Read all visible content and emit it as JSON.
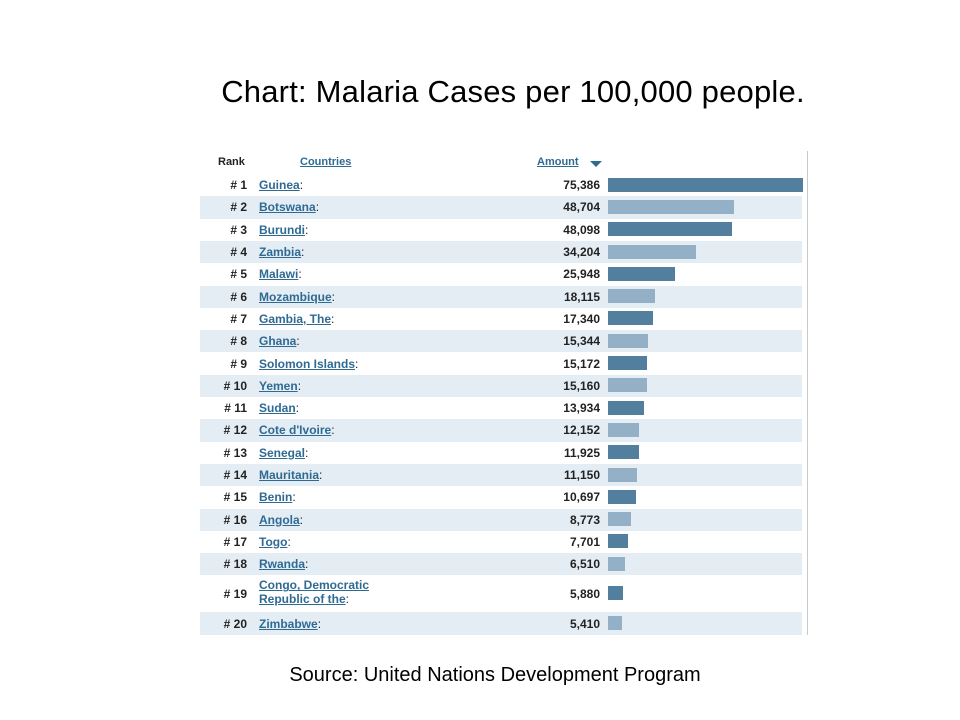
{
  "slide": {
    "title": "Chart: Malaria Cases per 100,000 people.",
    "source": "Source: United Nations Development Program"
  },
  "table": {
    "headers": {
      "rank": "Rank",
      "countries": "Countries",
      "amount": "Amount"
    },
    "sort_icon": "sort-descending-icon"
  },
  "colors": {
    "bar_dark": "#537f9f",
    "bar_light": "#93b0c6",
    "row_alt": "#e4edf4",
    "link": "#2f6a93"
  },
  "chart_data": {
    "type": "bar",
    "orientation": "horizontal",
    "title": "Chart: Malaria Cases per 100,000 people.",
    "ranks": [
      "# 1",
      "# 2",
      "# 3",
      "# 4",
      "# 5",
      "# 6",
      "# 7",
      "# 8",
      "# 9",
      "# 10",
      "# 11",
      "# 12",
      "# 13",
      "# 14",
      "# 15",
      "# 16",
      "# 17",
      "# 18",
      "# 19",
      "# 20"
    ],
    "categories": [
      "Guinea",
      "Botswana",
      "Burundi",
      "Zambia",
      "Malawi",
      "Mozambique",
      "Gambia, The",
      "Ghana",
      "Solomon Islands",
      "Yemen",
      "Sudan",
      "Cote d'Ivoire",
      "Senegal",
      "Mauritania",
      "Benin",
      "Angola",
      "Togo",
      "Rwanda",
      "Congo, Democratic Republic of the",
      "Zimbabwe"
    ],
    "value_labels": [
      "75,386",
      "48,704",
      "48,098",
      "34,204",
      "25,948",
      "18,115",
      "17,340",
      "15,344",
      "15,172",
      "15,160",
      "13,934",
      "12,152",
      "11,925",
      "11,150",
      "10,697",
      "8,773",
      "7,701",
      "6,510",
      "5,880",
      "5,410"
    ],
    "values": [
      75386,
      48704,
      48098,
      34204,
      25948,
      18115,
      17340,
      15344,
      15172,
      15160,
      13934,
      12152,
      11925,
      11150,
      10697,
      8773,
      7701,
      6510,
      5880,
      5410
    ],
    "xlim": [
      0,
      75386
    ]
  }
}
